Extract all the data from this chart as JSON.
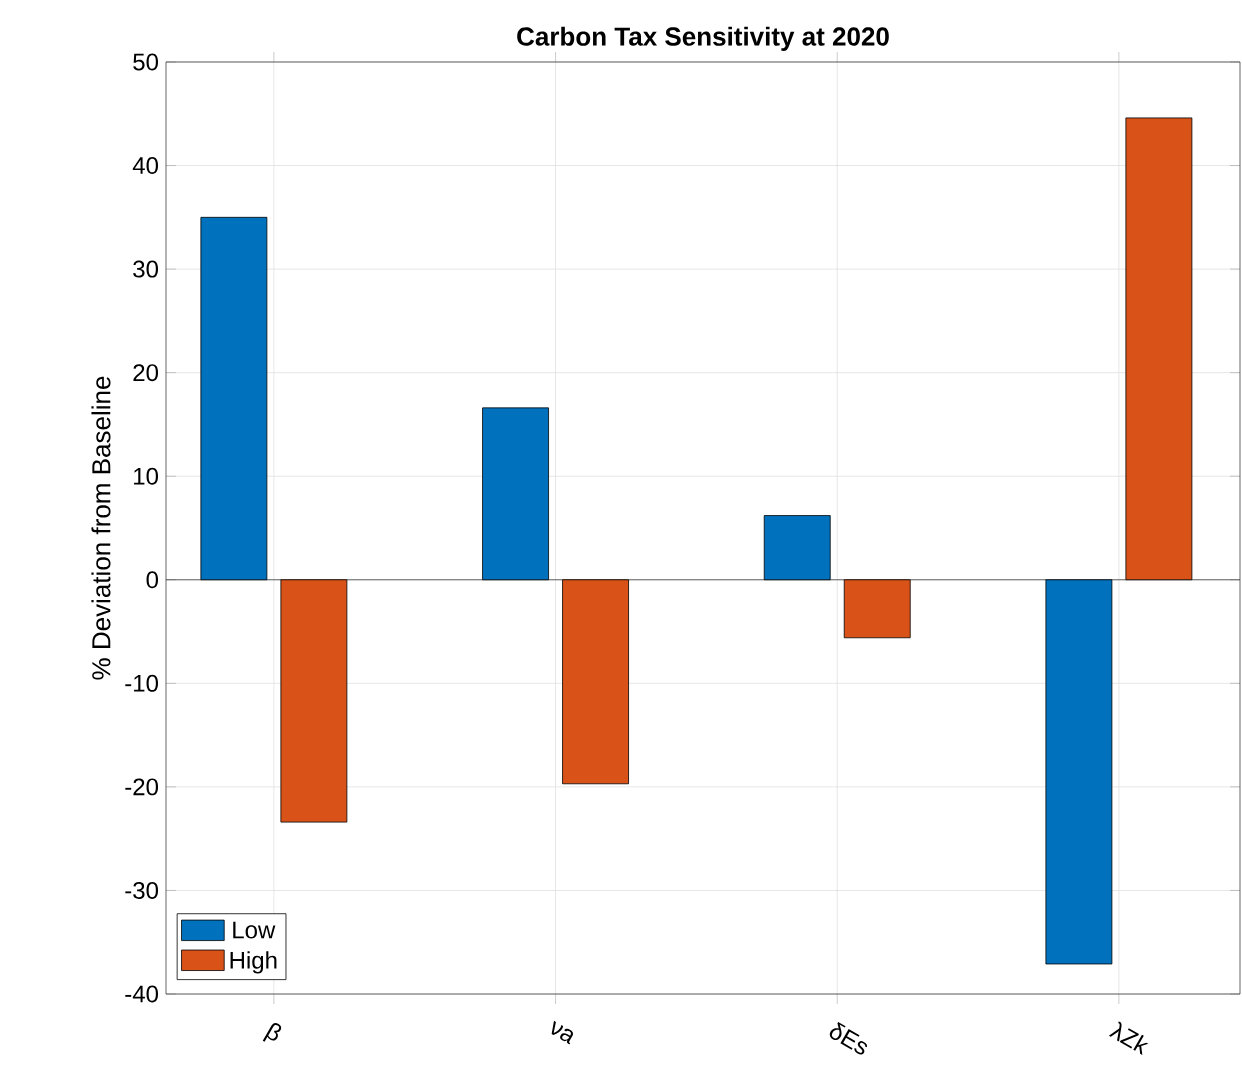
{
  "chart_data": {
    "type": "bar",
    "title": "Carbon Tax Sensitivity at 2020",
    "ylabel": "% Deviation from Baseline",
    "categories": [
      "β",
      "νa",
      "δEs",
      "λZk"
    ],
    "series": [
      {
        "name": "Low",
        "color": "#0072bd",
        "values": [
          35,
          16.6,
          6.2,
          -37.1
        ]
      },
      {
        "name": "High",
        "color": "#d95319",
        "values": [
          -23.4,
          -19.7,
          -5.6,
          44.6
        ]
      }
    ],
    "ylim": [
      -40,
      50
    ],
    "yticks": [
      -40,
      -30,
      -20,
      -10,
      0,
      10,
      20,
      30,
      40,
      50
    ],
    "grid": true,
    "legend": "bottom left"
  }
}
